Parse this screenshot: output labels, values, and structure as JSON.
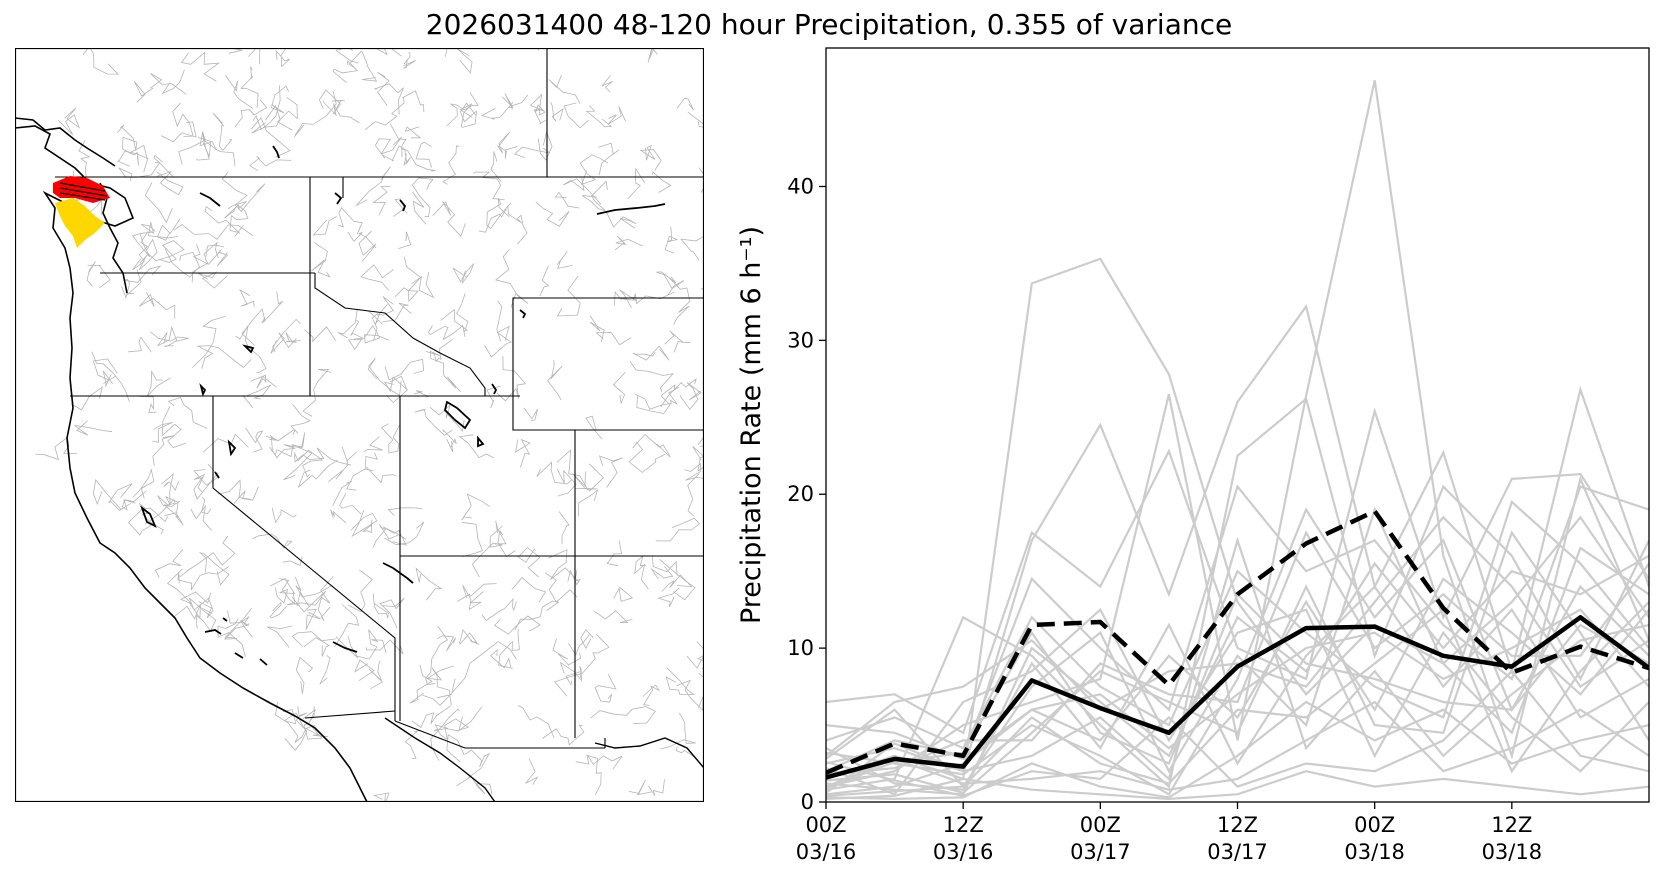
{
  "figure": {
    "title": "2026031400 48-120 hour Precipitation, 0.355 of variance"
  },
  "map": {
    "highlight_colors": {
      "primary": "#ff0000",
      "secondary": "#ffd700"
    },
    "basin_line_color": "#b5b5b5",
    "border_color": "#000000"
  },
  "chart_data": {
    "type": "line",
    "ylabel": "Precipitation Rate (mm 6 h⁻¹)",
    "xlabel": "",
    "ylim": [
      0,
      49
    ],
    "xlim": [
      0,
      18
    ],
    "yticks": [
      0,
      10,
      20,
      30,
      40
    ],
    "xtick_positions": [
      0,
      3,
      6,
      9,
      12,
      15
    ],
    "xtick_labels": [
      [
        "00Z",
        "03/16"
      ],
      [
        "12Z",
        "03/16"
      ],
      [
        "00Z",
        "03/17"
      ],
      [
        "12Z",
        "03/17"
      ],
      [
        "00Z",
        "03/18"
      ],
      [
        "12Z",
        "03/18"
      ]
    ],
    "x": [
      0,
      1.5,
      3,
      4.5,
      6,
      7.5,
      9,
      10.5,
      12,
      13.5,
      15,
      16.5,
      18
    ],
    "colors": {
      "members": "#cccccc",
      "mean": "#000000",
      "dashed": "#000000"
    },
    "series": [
      {
        "style": "solid",
        "values": [
          1.6,
          2.8,
          2.3,
          7.9,
          6.1,
          4.5,
          8.8,
          11.3,
          11.4,
          9.5,
          8.8,
          12.0,
          8.7
        ]
      },
      {
        "style": "dashed",
        "values": [
          1.9,
          3.8,
          3.0,
          11.5,
          11.7,
          7.6,
          13.5,
          16.8,
          18.9,
          12.6,
          8.4,
          10.1,
          8.7
        ]
      }
    ],
    "members": [
      [
        1.5,
        3.0,
        1.5,
        33.7,
        35.3,
        27.8,
        13.0,
        7.0,
        11.5,
        9.0,
        13.0,
        18.5,
        12.0
      ],
      [
        2.5,
        3.5,
        2.0,
        17.0,
        24.5,
        13.5,
        26.0,
        32.2,
        14.0,
        22.7,
        8.5,
        26.8,
        14.0
      ],
      [
        1.0,
        2.0,
        5.0,
        6.5,
        8.0,
        26.5,
        4.0,
        26.4,
        46.9,
        16.0,
        3.0,
        21.0,
        10.5
      ],
      [
        6.5,
        7.0,
        4.5,
        17.5,
        14.0,
        22.8,
        10.0,
        8.0,
        25.4,
        12.0,
        21.0,
        21.3,
        14.5
      ],
      [
        0.8,
        1.5,
        12.0,
        9.5,
        5.0,
        1.0,
        22.5,
        26.2,
        9.5,
        20.5,
        16.0,
        8.0,
        17.0
      ],
      [
        2.0,
        4.0,
        3.0,
        14.5,
        10.0,
        6.0,
        20.5,
        15.0,
        17.0,
        11.5,
        8.0,
        20.5,
        19.0
      ],
      [
        3.2,
        2.5,
        1.8,
        5.0,
        3.0,
        0.5,
        8.0,
        19.0,
        12.0,
        17.0,
        6.0,
        11.5,
        9.0
      ],
      [
        1.2,
        0.8,
        0.5,
        10.0,
        6.5,
        3.0,
        12.0,
        8.5,
        15.5,
        10.0,
        15.0,
        13.5,
        16.0
      ],
      [
        0.5,
        1.0,
        2.5,
        6.0,
        4.0,
        9.5,
        5.5,
        13.0,
        6.0,
        14.5,
        11.0,
        7.0,
        12.5
      ],
      [
        4.0,
        5.5,
        3.5,
        12.0,
        7.5,
        5.0,
        15.0,
        11.0,
        7.5,
        5.5,
        19.5,
        15.5,
        10.0
      ],
      [
        2.8,
        6.0,
        1.0,
        7.5,
        11.0,
        2.0,
        9.5,
        5.0,
        19.0,
        9.0,
        4.5,
        16.5,
        13.5
      ],
      [
        0.3,
        0.2,
        0.3,
        2.5,
        1.0,
        0.3,
        3.0,
        6.5,
        4.0,
        6.0,
        2.5,
        4.0,
        5.0
      ],
      [
        1.8,
        2.2,
        4.0,
        4.0,
        9.0,
        7.0,
        6.5,
        17.5,
        10.0,
        13.5,
        9.5,
        9.5,
        15.5
      ],
      [
        3.5,
        1.2,
        0.8,
        9.0,
        3.5,
        11.5,
        2.5,
        9.5,
        14.0,
        7.5,
        12.5,
        5.5,
        8.0
      ],
      [
        0.6,
        3.8,
        2.0,
        3.0,
        5.5,
        1.5,
        17.0,
        3.5,
        8.5,
        3.0,
        7.0,
        10.5,
        11.5
      ],
      [
        2.2,
        0.5,
        6.5,
        8.5,
        12.5,
        4.0,
        11.0,
        12.5,
        3.0,
        11.0,
        5.5,
        2.0,
        6.5
      ],
      [
        1.0,
        2.8,
        1.2,
        1.5,
        2.0,
        0.8,
        1.5,
        4.0,
        6.5,
        2.0,
        3.5,
        6.0,
        3.0
      ],
      [
        5.0,
        4.5,
        2.8,
        6.0,
        7.0,
        3.5,
        7.0,
        10.0,
        11.0,
        8.0,
        10.0,
        12.5,
        7.5
      ],
      [
        0.2,
        0.4,
        1.5,
        0.8,
        0.5,
        0.2,
        0.5,
        2.0,
        1.0,
        1.5,
        1.0,
        0.5,
        1.0
      ],
      [
        3.0,
        6.5,
        7.5,
        10.5,
        6.0,
        8.5,
        9.0,
        7.5,
        13.0,
        18.5,
        14.0,
        7.5,
        10.5
      ],
      [
        1.4,
        1.8,
        0.6,
        4.5,
        8.5,
        6.5,
        4.5,
        14.0,
        5.0,
        4.5,
        17.5,
        11.0,
        4.0
      ],
      [
        0.9,
        2.6,
        3.2,
        11.0,
        4.5,
        2.5,
        13.5,
        9.0,
        8.0,
        6.5,
        6.0,
        14.0,
        9.5
      ],
      [
        2.6,
        1.4,
        0.4,
        2.0,
        1.5,
        5.5,
        1.0,
        2.5,
        2.0,
        4.0,
        8.5,
        3.0,
        2.0
      ],
      [
        0.4,
        0.7,
        1.0,
        5.5,
        2.5,
        1.2,
        6.0,
        5.5,
        9.0,
        12.5,
        2.0,
        8.5,
        13.0
      ]
    ]
  }
}
